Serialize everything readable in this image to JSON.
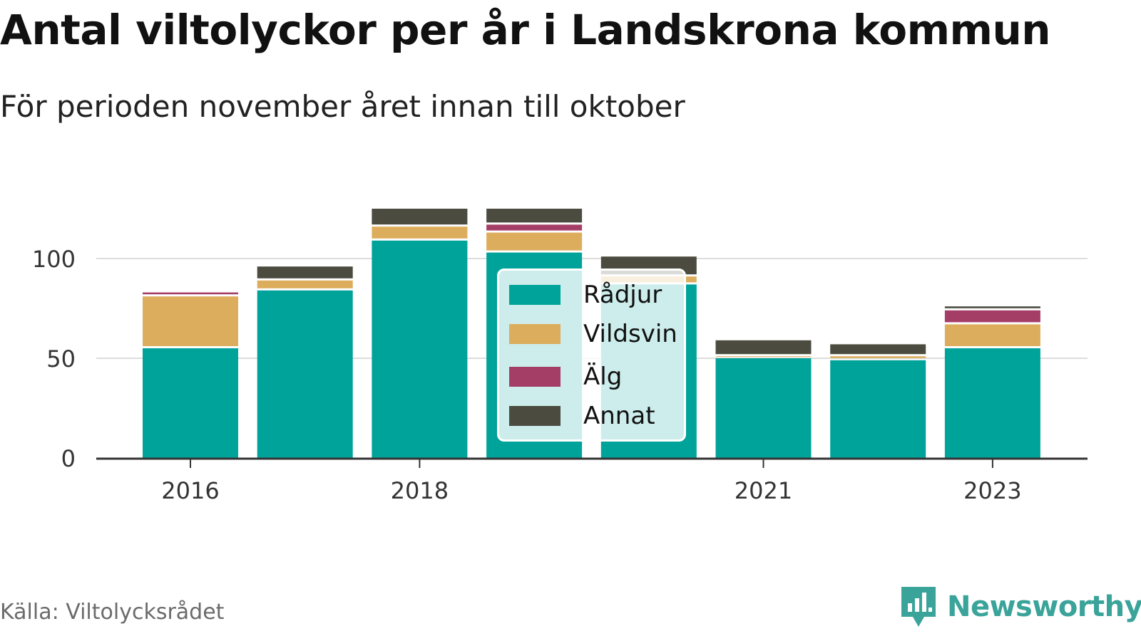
{
  "title": "Antal viltolyckor per år i Landskrona kommun",
  "subtitle": "För perioden november året innan till oktober",
  "source": "Källa: Viltolycksrådet",
  "brand": "Newsworthy",
  "colors": {
    "Rådjur": "#00a39a",
    "Vildsvin": "#dcad5c",
    "Älg": "#a53e67",
    "Annat": "#4b4c3f",
    "grid": "#dddddd",
    "axis": "#333333",
    "brand": "#3aa39a"
  },
  "legend": {
    "items": [
      "Rådjur",
      "Vildsvin",
      "Älg",
      "Annat"
    ]
  },
  "chart_data": {
    "type": "bar",
    "stacked": true,
    "categories": [
      "2016",
      "2017",
      "2018",
      "2019",
      "2020",
      "2021",
      "2022",
      "2023"
    ],
    "x_tick_labels": [
      "2016",
      "2018",
      "2021",
      "2023"
    ],
    "ylim": [
      0,
      125
    ],
    "yticks": [
      0,
      50,
      100
    ],
    "grid": true,
    "legend_position": "center",
    "series": [
      {
        "name": "Rådjur",
        "values": [
          55,
          84,
          109,
          103,
          87,
          50,
          49,
          55
        ]
      },
      {
        "name": "Vildsvin",
        "values": [
          26,
          5,
          7,
          10,
          4,
          1,
          2,
          12
        ]
      },
      {
        "name": "Älg",
        "values": [
          2,
          0,
          0,
          4,
          0,
          0,
          0,
          7
        ]
      },
      {
        "name": "Annat",
        "values": [
          0,
          7,
          9,
          8,
          10,
          8,
          6,
          2
        ]
      }
    ]
  }
}
